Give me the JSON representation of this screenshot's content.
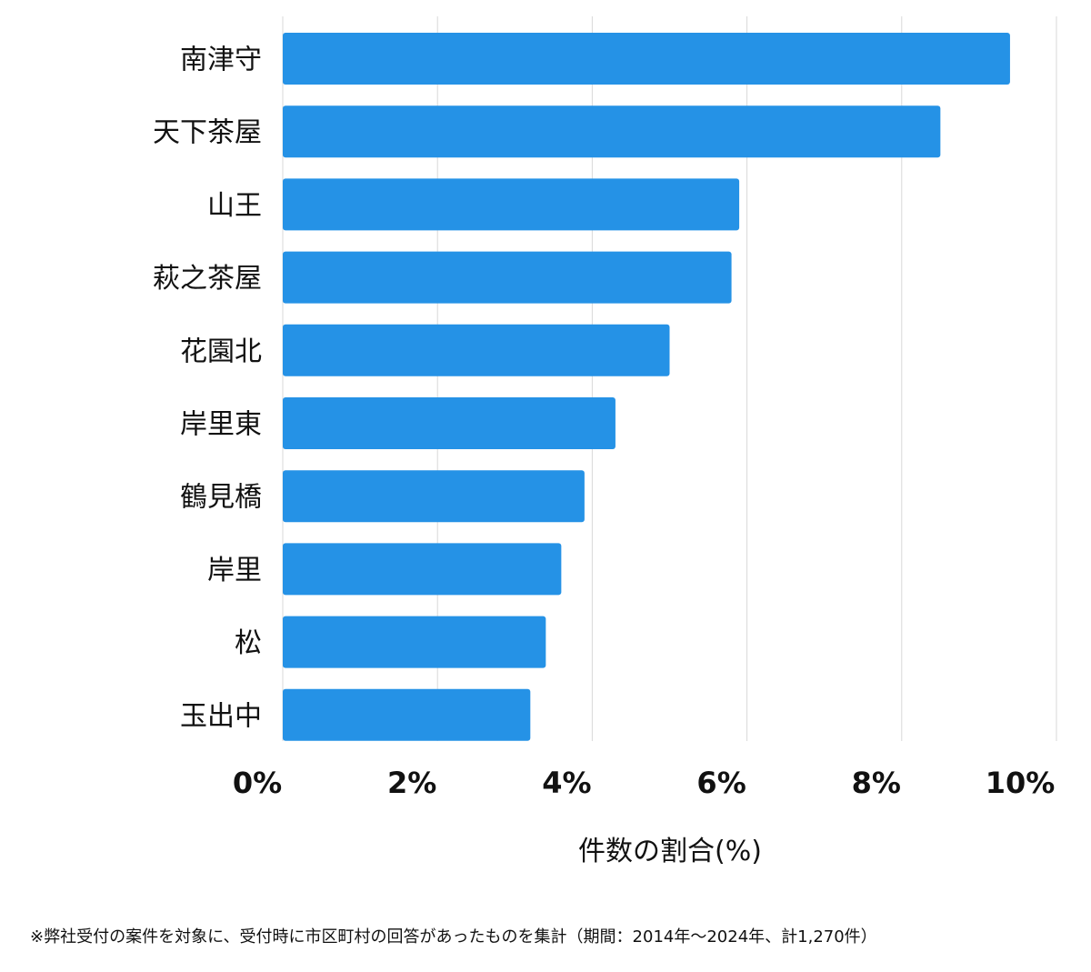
{
  "chart_data": {
    "type": "bar",
    "orientation": "horizontal",
    "categories": [
      "南津守",
      "天下茶屋",
      "山王",
      "萩之茶屋",
      "花園北",
      "岸里東",
      "鶴見橋",
      "岸里",
      "松",
      "玉出中"
    ],
    "values": [
      9.4,
      8.5,
      5.9,
      5.8,
      5.0,
      4.3,
      3.9,
      3.6,
      3.4,
      3.2
    ],
    "xlim": [
      0,
      10
    ],
    "ticks": [
      0,
      2,
      4,
      6,
      8,
      10
    ],
    "tick_labels": [
      "0%",
      "2%",
      "4%",
      "6%",
      "8%",
      "10%"
    ],
    "xlabel": "件数の割合(%)",
    "ylabel": "",
    "grid": true,
    "bar_color": "#2592e6"
  },
  "footnote": "※弊社受付の案件を対象に、受付時に市区町村の回答があったものを集計（期間：2014年～2024年、計1,270件）"
}
